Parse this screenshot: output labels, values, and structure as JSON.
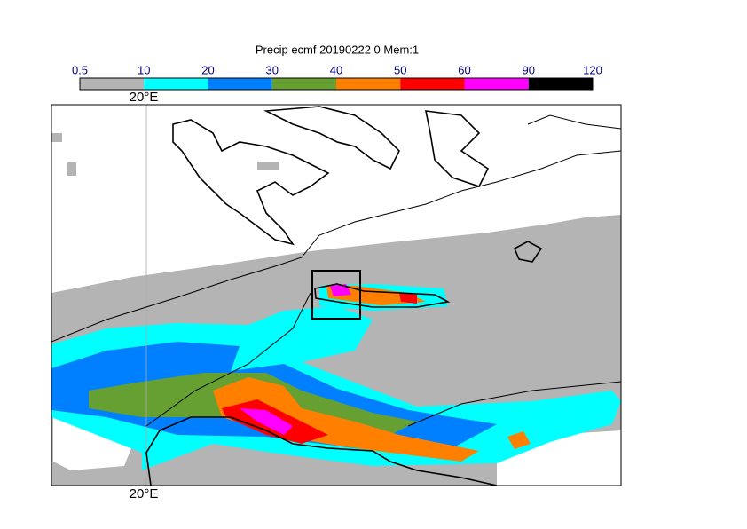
{
  "title": "Precip ecmf 20190222 0 Mem:1",
  "colorbar": {
    "ticks": [
      0.5,
      10,
      20,
      30,
      40,
      50,
      60,
      90,
      120
    ],
    "colors": [
      "#b4b4b4",
      "#00ffff",
      "#0080ff",
      "#66a033",
      "#ff8000",
      "#ff0000",
      "#ff00ff",
      "#000000"
    ]
  },
  "map": {
    "lon_label_top": "20°E",
    "lon_label_bottom": "20°E"
  }
}
